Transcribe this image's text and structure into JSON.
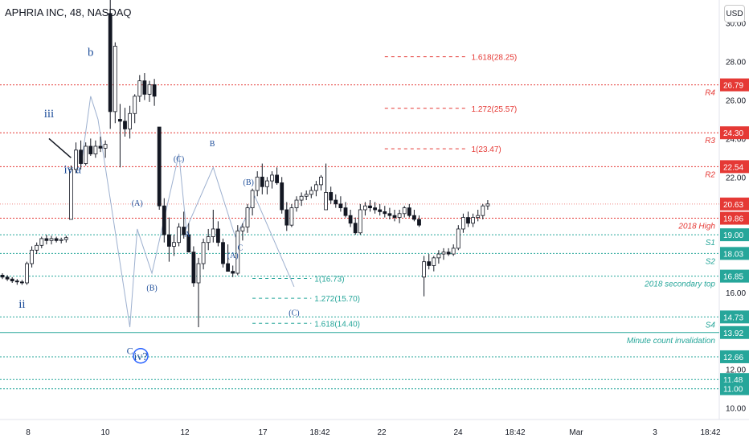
{
  "header": {
    "title": "APHRIA INC, 48, NASDAQ"
  },
  "currency": "USD",
  "colors": {
    "up": "#ffffff",
    "down": "#131722",
    "wick": "#131722",
    "red": "#e53935",
    "green": "#26a69a",
    "wave": "#2962ff",
    "waveText": "#1e4e9a",
    "diag": "#9db0cf"
  },
  "chart_data": {
    "type": "candlestick",
    "ylim": [
      9.4,
      31.2
    ],
    "x_ticks": [
      "8",
      "10",
      "12",
      "17",
      "18:42",
      "22",
      "24",
      "18:42",
      "Mar",
      "3",
      "18:42"
    ],
    "y_ticks": [
      30.0,
      28.0,
      26.0,
      24.0,
      22.0,
      20.0,
      18.0,
      16.0,
      14.0,
      12.0,
      10.0
    ],
    "y_tick_labels": [
      "30.00",
      "28.00",
      "26.00",
      "24.00",
      "22.00",
      "20.00",
      "18.00",
      "16.00",
      "14.00",
      "12.00",
      "10.00"
    ],
    "candles": [
      [
        16.9,
        17.0,
        16.7,
        16.8
      ],
      [
        16.8,
        16.9,
        16.6,
        16.7
      ],
      [
        16.7,
        16.8,
        16.5,
        16.6
      ],
      [
        16.6,
        16.7,
        16.4,
        16.55
      ],
      [
        16.55,
        16.65,
        16.4,
        16.5
      ],
      [
        16.5,
        17.6,
        16.4,
        17.5
      ],
      [
        17.5,
        18.4,
        17.3,
        18.2
      ],
      [
        18.2,
        18.6,
        18.0,
        18.45
      ],
      [
        18.45,
        18.9,
        18.3,
        18.8
      ],
      [
        18.8,
        19.0,
        18.5,
        18.7
      ],
      [
        18.7,
        18.95,
        18.5,
        18.8
      ],
      [
        18.8,
        18.9,
        18.6,
        18.7
      ],
      [
        18.7,
        18.85,
        18.55,
        18.75
      ],
      [
        18.75,
        18.95,
        18.6,
        18.85
      ],
      [
        19.8,
        22.6,
        19.8,
        22.4
      ],
      [
        22.4,
        23.8,
        22.2,
        23.4
      ],
      [
        23.4,
        23.9,
        22.4,
        22.7
      ],
      [
        22.7,
        23.8,
        22.6,
        23.6
      ],
      [
        23.6,
        24.0,
        23.1,
        23.2
      ],
      [
        23.2,
        23.9,
        23.0,
        23.6
      ],
      [
        23.6,
        24.1,
        23.3,
        23.5
      ],
      [
        23.5,
        23.9,
        23.0,
        23.7
      ],
      [
        30.5,
        31.5,
        24.5,
        25.4
      ],
      [
        25.4,
        29.0,
        24.8,
        28.8
      ],
      [
        25.0,
        25.8,
        22.5,
        24.9
      ],
      [
        24.9,
        25.6,
        24.1,
        24.5
      ],
      [
        24.5,
        25.7,
        24.0,
        25.3
      ],
      [
        25.3,
        26.3,
        24.8,
        26.2
      ],
      [
        26.2,
        27.3,
        25.9,
        27.0
      ],
      [
        27.0,
        27.4,
        26.0,
        26.3
      ],
      [
        26.3,
        27.0,
        25.9,
        26.8
      ],
      [
        26.8,
        27.1,
        25.7,
        26.2
      ],
      [
        24.6,
        24.6,
        20.3,
        20.5
      ],
      [
        20.5,
        20.9,
        18.6,
        19.0
      ],
      [
        19.0,
        19.9,
        17.6,
        18.4
      ],
      [
        18.4,
        19.0,
        17.9,
        18.6
      ],
      [
        18.6,
        19.6,
        18.4,
        19.4
      ],
      [
        19.4,
        20.2,
        18.8,
        19.0
      ],
      [
        19.0,
        19.6,
        18.3,
        18.1
      ],
      [
        18.1,
        18.4,
        16.3,
        16.5
      ],
      [
        16.5,
        17.8,
        14.2,
        17.5
      ],
      [
        17.5,
        18.8,
        17.2,
        18.6
      ],
      [
        18.6,
        19.3,
        18.2,
        18.9
      ],
      [
        18.9,
        20.3,
        18.6,
        19.3
      ],
      [
        19.3,
        19.7,
        18.4,
        18.6
      ],
      [
        18.6,
        18.8,
        17.3,
        17.5
      ],
      [
        17.5,
        18.5,
        17.2,
        17.1
      ],
      [
        17.1,
        17.4,
        16.8,
        17.0
      ],
      [
        17.0,
        19.5,
        16.9,
        19.2
      ],
      [
        19.2,
        19.6,
        18.7,
        19.4
      ],
      [
        19.4,
        20.6,
        19.1,
        20.4
      ],
      [
        20.4,
        21.4,
        20.0,
        21.3
      ],
      [
        21.3,
        22.3,
        21.0,
        22.0
      ],
      [
        22.0,
        22.7,
        21.1,
        21.5
      ],
      [
        21.5,
        22.0,
        21.1,
        21.8
      ],
      [
        21.8,
        22.3,
        21.4,
        22.1
      ],
      [
        22.1,
        22.5,
        21.6,
        21.7
      ],
      [
        21.7,
        22.0,
        20.1,
        20.3
      ],
      [
        20.3,
        20.7,
        19.2,
        19.5
      ],
      [
        19.5,
        20.6,
        19.4,
        20.4
      ],
      [
        20.4,
        21.0,
        20.2,
        20.8
      ],
      [
        20.8,
        21.2,
        20.5,
        21.0
      ],
      [
        21.0,
        21.3,
        20.8,
        21.1
      ],
      [
        21.1,
        21.5,
        20.9,
        21.3
      ],
      [
        21.3,
        21.8,
        21.0,
        21.6
      ],
      [
        21.6,
        22.1,
        21.3,
        22.0
      ],
      [
        20.3,
        22.7,
        20.3,
        21.2
      ],
      [
        21.2,
        21.5,
        20.6,
        20.8
      ],
      [
        20.8,
        21.1,
        20.4,
        20.6
      ],
      [
        20.6,
        21.0,
        20.2,
        20.4
      ],
      [
        20.4,
        20.7,
        19.9,
        20.0
      ],
      [
        20.0,
        20.3,
        19.4,
        19.6
      ],
      [
        19.6,
        19.9,
        19.0,
        19.1
      ],
      [
        19.1,
        20.6,
        19.0,
        20.3
      ],
      [
        20.3,
        20.7,
        20.0,
        20.5
      ],
      [
        20.5,
        20.8,
        20.2,
        20.4
      ],
      [
        20.4,
        20.7,
        20.1,
        20.3
      ],
      [
        20.3,
        20.6,
        20.0,
        20.2
      ],
      [
        20.2,
        20.5,
        19.9,
        20.1
      ],
      [
        20.1,
        20.4,
        19.8,
        20.0
      ],
      [
        20.0,
        20.3,
        19.7,
        19.9
      ],
      [
        19.9,
        20.3,
        19.6,
        20.1
      ],
      [
        20.1,
        20.5,
        19.9,
        20.4
      ],
      [
        20.4,
        20.6,
        19.9,
        20.0
      ],
      [
        20.0,
        20.3,
        19.7,
        19.8
      ],
      [
        19.8,
        20.0,
        19.4,
        19.5
      ],
      [
        16.8,
        17.9,
        15.8,
        17.6
      ],
      [
        17.6,
        18.0,
        17.2,
        17.4
      ],
      [
        17.4,
        17.9,
        17.1,
        17.8
      ],
      [
        17.8,
        18.2,
        17.5,
        18.0
      ],
      [
        18.0,
        18.3,
        17.7,
        18.1
      ],
      [
        18.1,
        18.3,
        17.9,
        18.0
      ],
      [
        18.0,
        18.5,
        17.9,
        18.3
      ],
      [
        18.3,
        19.5,
        18.2,
        19.3
      ],
      [
        19.3,
        20.1,
        19.1,
        19.9
      ],
      [
        19.9,
        20.2,
        19.4,
        19.6
      ],
      [
        19.6,
        20.1,
        19.4,
        19.9
      ],
      [
        19.9,
        20.3,
        19.7,
        20.0
      ],
      [
        20.0,
        20.6,
        19.8,
        20.5
      ],
      [
        20.5,
        20.8,
        20.3,
        20.6
      ]
    ],
    "hlines": [
      {
        "name": "r4",
        "value": 26.79,
        "color": "red",
        "label": "R4",
        "price_label": "26.79"
      },
      {
        "name": "r3",
        "value": 24.3,
        "color": "red",
        "label": "R3",
        "price_label": "24.30"
      },
      {
        "name": "r2",
        "value": 22.54,
        "color": "red",
        "label": "R2",
        "price_label": "22.54"
      },
      {
        "name": "2018-high",
        "value": 19.86,
        "color": "red",
        "label": "2018 High",
        "price_label": "19.86"
      },
      {
        "name": "s1",
        "value": 19.0,
        "color": "green",
        "label": "S1",
        "price_label": "19.00"
      },
      {
        "name": "s2",
        "value": 18.03,
        "color": "green",
        "label": "S2",
        "price_label": "18.03"
      },
      {
        "name": "2018-secondary-top",
        "value": 16.85,
        "color": "green",
        "label": "2018 secondary top",
        "price_label": "16.85"
      },
      {
        "name": "s4",
        "value": 14.73,
        "color": "green",
        "label": "S4",
        "price_label": "14.73"
      },
      {
        "name": "minute-count-invalidation",
        "value": 13.92,
        "color": "green",
        "label": "Minute count invalidation",
        "price_label": "13.92",
        "solid": true
      },
      {
        "name": "s5",
        "value": 12.66,
        "color": "green",
        "label": "",
        "price_label": "12.66"
      },
      {
        "name": "s6",
        "value": 11.48,
        "color": "green",
        "label": "",
        "price_label": "11.48"
      },
      {
        "name": "s7",
        "value": 11.0,
        "color": "green",
        "label": "",
        "price_label": "11.00"
      }
    ],
    "current_price": {
      "value": 20.6,
      "price_label": "20.63"
    },
    "fibs": [
      {
        "name": "fib-1618-up",
        "value": 28.25,
        "color": "red",
        "label": "1.618(28.25)",
        "x_range": [
          78,
          95
        ]
      },
      {
        "name": "fib-1272-up",
        "value": 25.57,
        "color": "red",
        "label": "1.272(25.57)",
        "x_range": [
          78,
          95
        ]
      },
      {
        "name": "fib-1-up",
        "value": 23.47,
        "color": "red",
        "label": "1(23.47)",
        "x_range": [
          78,
          95
        ]
      },
      {
        "name": "fib-1-down",
        "value": 16.73,
        "color": "green",
        "label": "1(16.73)",
        "x_range": [
          51,
          63
        ]
      },
      {
        "name": "fib-1272-down",
        "value": 15.7,
        "color": "green",
        "label": "1.272(15.70)",
        "x_range": [
          51,
          63
        ]
      },
      {
        "name": "fib-1618-down",
        "value": 14.4,
        "color": "green",
        "label": "1.618(14.40)",
        "x_range": [
          51,
          63
        ]
      }
    ],
    "wave_labels": [
      {
        "name": "wave-iii",
        "text": "iii",
        "x": 9.5,
        "y": 25.1,
        "size": 15
      },
      {
        "name": "wave-ii",
        "text": "ii",
        "x": 4,
        "y": 15.2,
        "size": 15
      },
      {
        "name": "wave-iv",
        "text": "iv",
        "x": 13.5,
        "y": 22.2,
        "size": 15
      },
      {
        "name": "wave-a",
        "text": "a",
        "x": 15.5,
        "y": 22.2,
        "size": 15
      },
      {
        "name": "wave-b",
        "text": "b",
        "x": 18,
        "y": 28.3,
        "size": 15
      },
      {
        "name": "wave-A-left",
        "text": "(A)",
        "x": 27.5,
        "y": 20.5,
        "size": 10
      },
      {
        "name": "wave-B-left",
        "text": "(B)",
        "x": 30.5,
        "y": 16.1,
        "size": 10
      },
      {
        "name": "wave-C-left",
        "text": "C",
        "x": 26,
        "y": 12.8,
        "size": 12
      },
      {
        "name": "wave-iv-circle",
        "text": "iv?",
        "x": 28.2,
        "y": 12.5,
        "size": 14
      },
      {
        "name": "wave-C-top",
        "text": "(C)",
        "x": 36,
        "y": 22.8,
        "size": 10
      },
      {
        "name": "wave-A-mid",
        "text": "A",
        "x": 37.7,
        "y": 18.9,
        "size": 10
      },
      {
        "name": "wave-B-mid",
        "text": "B",
        "x": 42.8,
        "y": 23.6,
        "size": 10
      },
      {
        "name": "wave-A-low",
        "text": "(A)",
        "x": 47,
        "y": 17.8,
        "size": 10
      },
      {
        "name": "wave-C-low",
        "text": "C",
        "x": 48.5,
        "y": 18.2,
        "size": 10
      },
      {
        "name": "wave-B-right",
        "text": "(B)",
        "x": 50.2,
        "y": 21.6,
        "size": 10
      },
      {
        "name": "wave-C-right",
        "text": "(C)",
        "x": 59.5,
        "y": 14.8,
        "size": 10
      }
    ],
    "wave_path": [
      [
        16,
        22.5
      ],
      [
        18,
        26.2
      ],
      [
        19.5,
        25.0
      ],
      [
        26,
        14.2
      ],
      [
        27.5,
        19.3
      ],
      [
        30.5,
        17.0
      ],
      [
        36,
        23.2
      ],
      [
        37.5,
        19.3
      ],
      [
        43,
        22.5
      ],
      [
        47.5,
        18.9
      ],
      [
        49.5,
        19.8
      ],
      [
        51.5,
        21.0
      ],
      [
        59.5,
        16.3
      ]
    ],
    "trend_segment": [
      [
        9.5,
        24.0
      ],
      [
        14,
        23.0
      ]
    ],
    "circle": {
      "x": 28.2,
      "y": 12.5
    }
  }
}
